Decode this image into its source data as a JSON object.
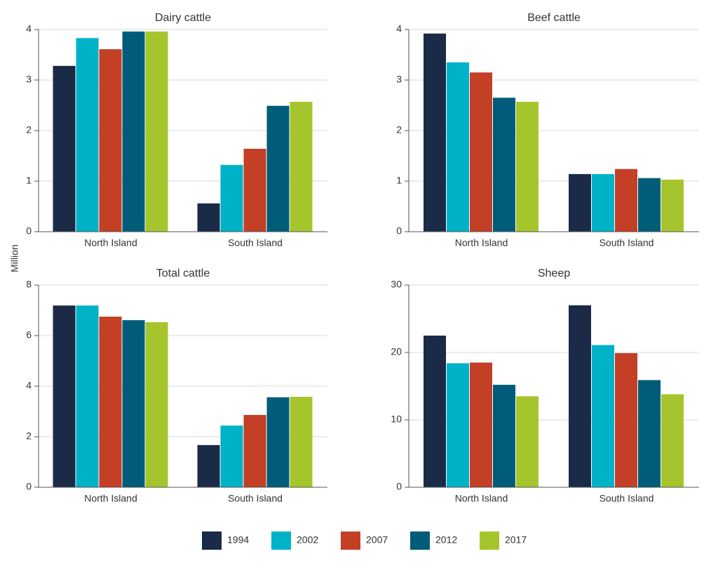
{
  "ylabel": "Million",
  "chart_data": [
    {
      "type": "bar",
      "title": "Dairy cattle",
      "categories": [
        "North Island",
        "South Island"
      ],
      "ylim": [
        0,
        4
      ],
      "yticks": [
        0,
        1,
        2,
        3,
        4
      ],
      "grid": true,
      "series": [
        {
          "name": "1994",
          "color": "#1a2a47",
          "values": [
            3.28,
            0.56
          ]
        },
        {
          "name": "2002",
          "color": "#00b2c8",
          "values": [
            3.83,
            1.32
          ]
        },
        {
          "name": "2007",
          "color": "#c33f26",
          "values": [
            3.61,
            1.64
          ]
        },
        {
          "name": "2012",
          "color": "#005c78",
          "values": [
            3.96,
            2.49
          ]
        },
        {
          "name": "2017",
          "color": "#a6c52c",
          "values": [
            3.96,
            2.57
          ]
        }
      ]
    },
    {
      "type": "bar",
      "title": "Beef cattle",
      "categories": [
        "North Island",
        "South Island"
      ],
      "ylim": [
        0,
        4
      ],
      "yticks": [
        0,
        1,
        2,
        3,
        4
      ],
      "grid": true,
      "series": [
        {
          "name": "1994",
          "color": "#1a2a47",
          "values": [
            3.92,
            1.14
          ]
        },
        {
          "name": "2002",
          "color": "#00b2c8",
          "values": [
            3.35,
            1.14
          ]
        },
        {
          "name": "2007",
          "color": "#c33f26",
          "values": [
            3.15,
            1.24
          ]
        },
        {
          "name": "2012",
          "color": "#005c78",
          "values": [
            2.65,
            1.06
          ]
        },
        {
          "name": "2017",
          "color": "#a6c52c",
          "values": [
            2.57,
            1.03
          ]
        }
      ]
    },
    {
      "type": "bar",
      "title": "Total cattle",
      "categories": [
        "North Island",
        "South Island"
      ],
      "ylim": [
        0,
        8
      ],
      "yticks": [
        0,
        2,
        4,
        6,
        8
      ],
      "grid": true,
      "series": [
        {
          "name": "1994",
          "color": "#1a2a47",
          "values": [
            7.19,
            1.67
          ]
        },
        {
          "name": "2002",
          "color": "#00b2c8",
          "values": [
            7.19,
            2.44
          ]
        },
        {
          "name": "2007",
          "color": "#c33f26",
          "values": [
            6.75,
            2.86
          ]
        },
        {
          "name": "2012",
          "color": "#005c78",
          "values": [
            6.61,
            3.56
          ]
        },
        {
          "name": "2017",
          "color": "#a6c52c",
          "values": [
            6.53,
            3.58
          ]
        }
      ]
    },
    {
      "type": "bar",
      "title": "Sheep",
      "categories": [
        "North Island",
        "South Island"
      ],
      "ylim": [
        0,
        30
      ],
      "yticks": [
        0,
        10,
        20,
        30
      ],
      "grid": true,
      "series": [
        {
          "name": "1994",
          "color": "#1a2a47",
          "values": [
            22.5,
            27.0
          ]
        },
        {
          "name": "2002",
          "color": "#00b2c8",
          "values": [
            18.4,
            21.1
          ]
        },
        {
          "name": "2007",
          "color": "#c33f26",
          "values": [
            18.5,
            19.9
          ]
        },
        {
          "name": "2012",
          "color": "#005c78",
          "values": [
            15.2,
            15.9
          ]
        },
        {
          "name": "2017",
          "color": "#a6c52c",
          "values": [
            13.5,
            13.8
          ]
        }
      ]
    }
  ]
}
